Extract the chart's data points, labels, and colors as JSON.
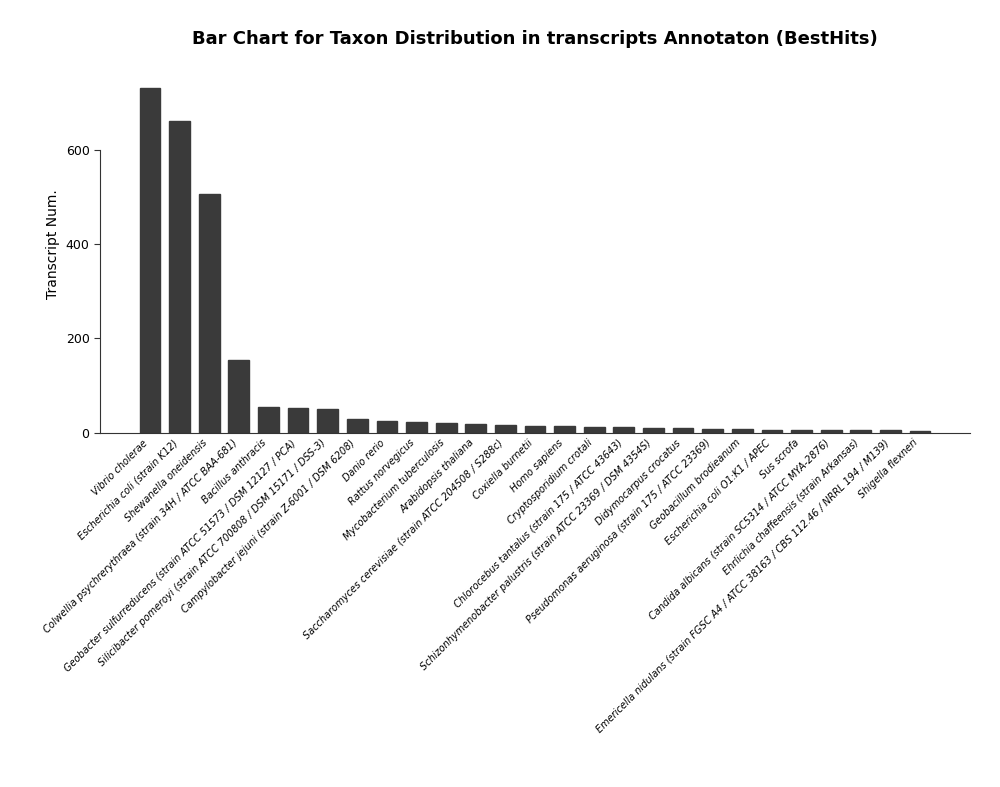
{
  "title": "Bar Chart for Taxon Distribution in transcripts Annotaton (BestHits)",
  "ylabel": "Transcript Num.",
  "categories": [
    "Vibrio cholerae",
    "Escherichia coli (strain K12)",
    "Shewanella oneidensis",
    "Colwellia psychrerythraea (strain 34H / ATCC BAA-681)",
    "Bacillus anthracis",
    "Geobacter sulfurreducens (strain ATCC 51573 / DSM 12127 / PCA)",
    "Silicibacter pomeroyi (strain ATCC 700808 / DSM 15171 / DSS-3)",
    "Campylobacter jejuni (strain Z-6001 / DSM 6208)",
    "Danio rerio",
    "Rattus norvegicus",
    "Mycobacterium tuberculosis",
    "Arabidopsis thaliana",
    "Saccharomyces cerevisiae (strain ATCC 204508 / S288c)",
    "Coxiella burnetii",
    "Homo sapiens",
    "Cryptosporidium crotali",
    "Chlorocebus tantalus (strain 175 / ATCC 43643)",
    "Schizonhymenobacter palustris (strain ATCC 23369 / DSM 4354S)",
    "Didymocarpus crocatus",
    "Pseudomonas aeruginosa (strain 175 / ATCC 23369)",
    "Geobacillum brodieanum",
    "Escherichia coli O1:K1 / APEC",
    "Sus scrofa",
    "Candida albicans (strain SC5314 / ATCC MYA-2876)",
    "Ehrlichia chaffeensis (strain Arkansas)",
    "Emericella nidulans (strain FGSC A4 / ATCC 38163 / CBS 112.46 / NRRL 194 / M139)",
    "Shigella flexneri"
  ],
  "values": [
    730,
    660,
    505,
    155,
    55,
    52,
    50,
    30,
    25,
    22,
    20,
    18,
    16,
    15,
    14,
    13,
    12,
    11,
    10,
    9,
    8,
    7,
    7,
    6,
    5,
    5,
    4
  ],
  "bar_color": "#3a3a3a",
  "background_color": "#ffffff",
  "ylim": [
    0,
    800
  ],
  "yticks": [
    0,
    200,
    400,
    600
  ],
  "title_fontsize": 13,
  "ylabel_fontsize": 10,
  "label_fontsize": 7,
  "ytick_fontsize": 9
}
